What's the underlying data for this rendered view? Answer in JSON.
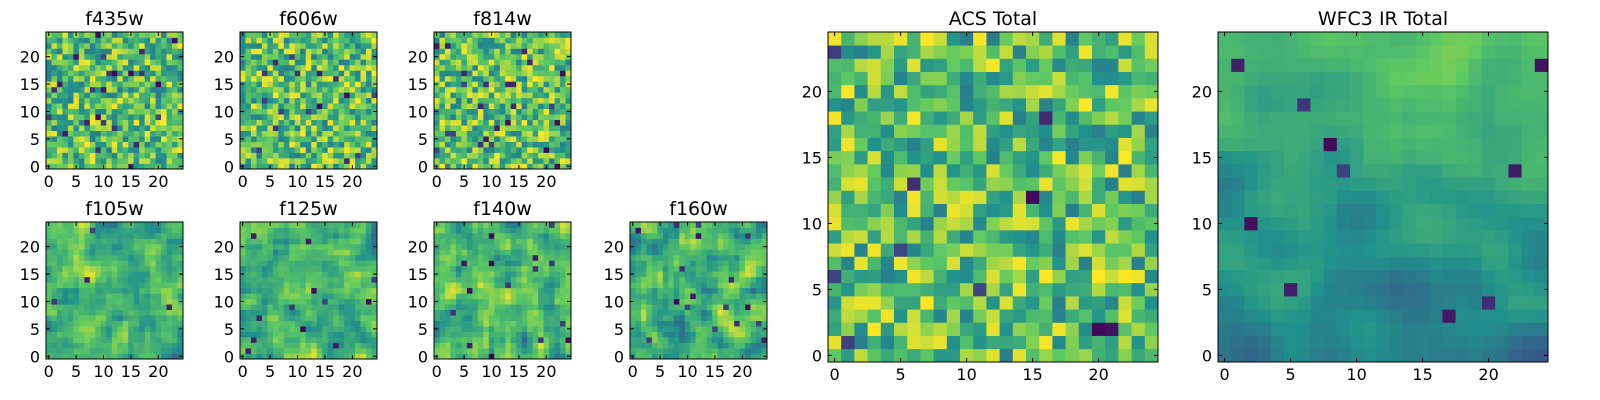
{
  "figure": {
    "colormap": "viridis",
    "colors": [
      "#440154",
      "#3b528b",
      "#21918c",
      "#5ec962",
      "#fde725"
    ],
    "background": "#ffffff"
  },
  "chart_data": [
    {
      "type": "heatmap",
      "title": "f435w",
      "grid": [
        25,
        25
      ],
      "xlim": [
        0,
        24
      ],
      "ylim": [
        0,
        24
      ],
      "xticks": [
        0,
        5,
        10,
        15,
        20
      ],
      "yticks": [
        0,
        5,
        10,
        15,
        20
      ],
      "seed": 11,
      "style": "noise",
      "dark_cells": 0.04
    },
    {
      "type": "heatmap",
      "title": "f606w",
      "grid": [
        25,
        25
      ],
      "xlim": [
        0,
        24
      ],
      "ylim": [
        0,
        24
      ],
      "xticks": [
        0,
        5,
        10,
        15,
        20
      ],
      "yticks": [
        0,
        5,
        10,
        15,
        20
      ],
      "seed": 23,
      "style": "noise",
      "dark_cells": 0.03
    },
    {
      "type": "heatmap",
      "title": "f814w",
      "grid": [
        25,
        25
      ],
      "xlim": [
        0,
        24
      ],
      "ylim": [
        0,
        24
      ],
      "xticks": [
        0,
        5,
        10,
        15,
        20
      ],
      "yticks": [
        0,
        5,
        10,
        15,
        20
      ],
      "seed": 37,
      "style": "noise",
      "dark_cells": 0.03
    },
    {
      "type": "heatmap",
      "title": "f105w",
      "grid": [
        25,
        25
      ],
      "xlim": [
        0,
        24
      ],
      "ylim": [
        0,
        24
      ],
      "xticks": [
        0,
        5,
        10,
        15,
        20
      ],
      "yticks": [
        0,
        5,
        10,
        15,
        20
      ],
      "seed": 41,
      "style": "smooth",
      "dark_cells": 0.01
    },
    {
      "type": "heatmap",
      "title": "f125w",
      "grid": [
        25,
        25
      ],
      "xlim": [
        0,
        24
      ],
      "ylim": [
        0,
        24
      ],
      "xticks": [
        0,
        5,
        10,
        15,
        20
      ],
      "yticks": [
        0,
        5,
        10,
        15,
        20
      ],
      "seed": 53,
      "style": "smooth",
      "dark_cells": 0.01
    },
    {
      "type": "heatmap",
      "title": "f140w",
      "grid": [
        25,
        25
      ],
      "xlim": [
        0,
        24
      ],
      "ylim": [
        0,
        24
      ],
      "xticks": [
        0,
        5,
        10,
        15,
        20
      ],
      "yticks": [
        0,
        5,
        10,
        15,
        20
      ],
      "seed": 67,
      "style": "smooth",
      "dark_cells": 0.015
    },
    {
      "type": "heatmap",
      "title": "f160w",
      "grid": [
        25,
        25
      ],
      "xlim": [
        0,
        24
      ],
      "ylim": [
        0,
        24
      ],
      "xticks": [
        0,
        5,
        10,
        15,
        20
      ],
      "yticks": [
        0,
        5,
        10,
        15,
        20
      ],
      "seed": 79,
      "style": "smooth",
      "dark_cells": 0.02
    },
    {
      "type": "heatmap",
      "title": "ACS Total",
      "grid": [
        25,
        25
      ],
      "xlim": [
        0,
        24
      ],
      "ylim": [
        0,
        24
      ],
      "xticks": [
        0,
        5,
        10,
        15,
        20
      ],
      "yticks": [
        0,
        5,
        10,
        15,
        20
      ],
      "seed": 97,
      "style": "noise",
      "dark_cells": 0.02
    },
    {
      "type": "heatmap",
      "title": "WFC3 IR Total",
      "grid": [
        25,
        25
      ],
      "xlim": [
        0,
        24
      ],
      "ylim": [
        0,
        24
      ],
      "xticks": [
        0,
        5,
        10,
        15,
        20
      ],
      "yticks": [
        0,
        5,
        10,
        15,
        20
      ],
      "seed": 131,
      "style": "gradient",
      "dark_cells": 0.02
    }
  ]
}
